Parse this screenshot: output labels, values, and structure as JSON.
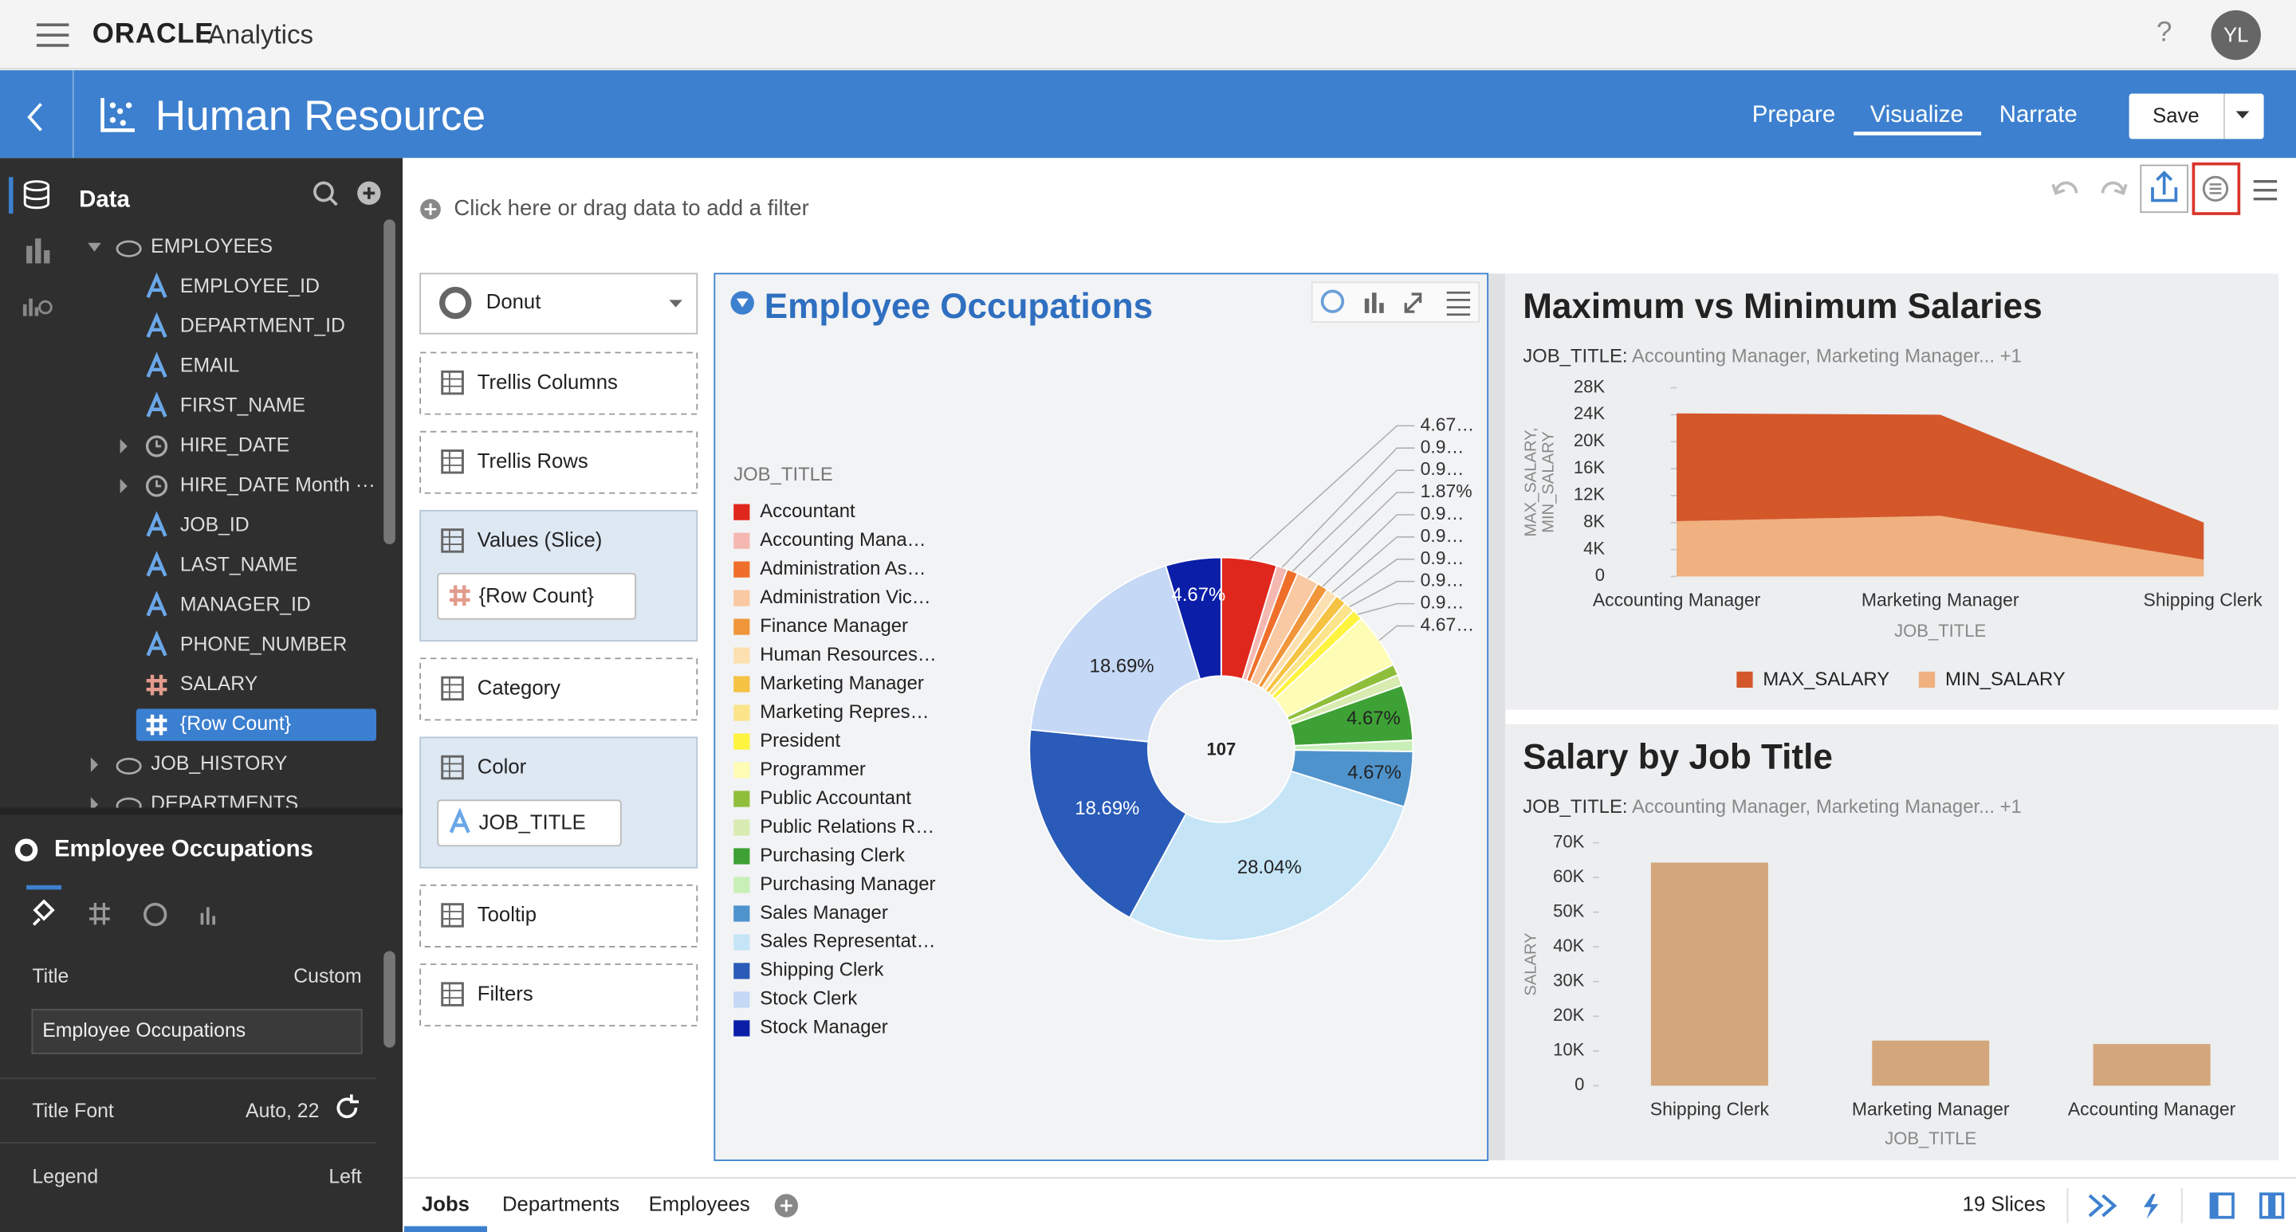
{
  "top_bar": {
    "brand": "ORACLE",
    "product": "Analytics",
    "help": "?",
    "user_initials": "YL"
  },
  "header": {
    "title": "Human Resource",
    "tabs": [
      "Prepare",
      "Visualize",
      "Narrate"
    ],
    "active_tab": 1,
    "save": "Save"
  },
  "data_panel": {
    "title": "Data",
    "tree": [
      {
        "label": "EMPLOYEES",
        "kind": "table",
        "expand": "open"
      },
      {
        "label": "EMPLOYEE_ID",
        "kind": "attribute"
      },
      {
        "label": "DEPARTMENT_ID",
        "kind": "attribute"
      },
      {
        "label": "EMAIL",
        "kind": "attribute"
      },
      {
        "label": "FIRST_NAME",
        "kind": "attribute"
      },
      {
        "label": "HIRE_DATE",
        "kind": "date",
        "expand": "closed"
      },
      {
        "label": "HIRE_DATE Month ···",
        "kind": "date",
        "expand": "closed"
      },
      {
        "label": "JOB_ID",
        "kind": "attribute"
      },
      {
        "label": "LAST_NAME",
        "kind": "attribute"
      },
      {
        "label": "MANAGER_ID",
        "kind": "attribute"
      },
      {
        "label": "PHONE_NUMBER",
        "kind": "attribute"
      },
      {
        "label": "SALARY",
        "kind": "measure"
      },
      {
        "label": "{Row Count}",
        "kind": "measure",
        "selected": true
      },
      {
        "label": "JOB_HISTORY",
        "kind": "table",
        "expand": "closed"
      },
      {
        "label": "DEPARTMENTS",
        "kind": "table",
        "expand": "closed"
      }
    ]
  },
  "properties": {
    "title": "Employee Occupations",
    "rows": [
      {
        "label": "Title",
        "value": "Custom"
      },
      {
        "label": "Title Font",
        "value": "Auto, 22"
      },
      {
        "label": "Legend",
        "value": "Left"
      }
    ],
    "title_input": "Employee Occupations"
  },
  "filter_bar": {
    "placeholder": "Click here or drag data to add a filter"
  },
  "grammar": {
    "chart_type": "Donut",
    "sections": [
      {
        "label": "Trellis Columns"
      },
      {
        "label": "Trellis Rows"
      },
      {
        "label": "Values (Slice)",
        "item": "{Row Count}",
        "item_kind": "measure"
      },
      {
        "label": "Category"
      },
      {
        "label": "Color",
        "item": "JOB_TITLE",
        "item_kind": "attribute"
      },
      {
        "label": "Tooltip"
      },
      {
        "label": "Filters"
      }
    ]
  },
  "chart_data": [
    {
      "type": "donut",
      "title": "Employee Occupations",
      "legend_title": "JOB_TITLE",
      "legend": "left",
      "categories": [
        "Accountant",
        "Accounting Mana…",
        "Administration As…",
        "Administration Vic…",
        "Finance Manager",
        "Human Resources…",
        "Marketing Manager",
        "Marketing Repres…",
        "President",
        "Programmer",
        "Public Accountant",
        "Public Relations R…",
        "Purchasing Clerk",
        "Purchasing Manager",
        "Sales Manager",
        "Sales Representat…",
        "Shipping Clerk",
        "Stock Clerk",
        "Stock Manager"
      ],
      "values": [
        4.67,
        0.93,
        0.93,
        1.87,
        0.93,
        0.93,
        0.93,
        0.93,
        0.93,
        4.67,
        0.93,
        0.93,
        4.67,
        0.93,
        4.67,
        28.04,
        18.69,
        18.69,
        4.67
      ],
      "value_labels": [
        "4.67…",
        "0.9…",
        "0.9…",
        "1.87%",
        "0.9…",
        "0.9…",
        "0.9…",
        "0.9…",
        "0.9…",
        "4.67…",
        null,
        null,
        "4.67%",
        null,
        "4.67%",
        "28.04%",
        "18.69%",
        "18.69%",
        "4.67%"
      ],
      "colors": [
        "#e0271d",
        "#f4b8b1",
        "#ef6f2a",
        "#f8c9a2",
        "#f0953a",
        "#fde0b0",
        "#f5c242",
        "#fbe48a",
        "#fef33e",
        "#fefcb5",
        "#8fbe3a",
        "#d8ebb0",
        "#3ea135",
        "#c8efb7",
        "#4f93cc",
        "#c5e5f7",
        "#2a5bb8",
        "#c5d8f5",
        "#0b1ea8"
      ],
      "total": 107
    },
    {
      "type": "area",
      "title": "Maximum vs Minimum Salaries",
      "filter_label": "JOB_TITLE:",
      "filter_values": "Accounting Manager, Marketing Manager... +1",
      "categories": [
        "Accounting Manager",
        "Marketing Manager",
        "Shipping Clerk"
      ],
      "series": [
        {
          "name": "MAX_SALARY",
          "color": "#d4572a",
          "values": [
            16000,
            15000,
            5500
          ]
        },
        {
          "name": "MIN_SALARY",
          "color": "#f0b07f",
          "values": [
            8200,
            9000,
            2500
          ]
        }
      ],
      "stacked": true,
      "legend": "bottom",
      "ylim": [
        0,
        28000
      ],
      "yticks": [
        0,
        {
          "value": 4000,
          "label": "4K"
        },
        {
          "value": 8000,
          "label": "8K"
        },
        {
          "value": 12000,
          "label": "12K"
        },
        {
          "value": 16000,
          "label": "16K"
        },
        {
          "value": 20000,
          "label": "20K"
        },
        {
          "value": 24000,
          "label": "24K"
        },
        {
          "value": 28000,
          "label": "28K"
        }
      ],
      "y_label_lines": [
        "MAX_SALARY,",
        "MIN_SALARY"
      ],
      "x_label": "JOB_TITLE"
    },
    {
      "type": "bar",
      "title": "Salary by Job Title",
      "filter_label": "JOB_TITLE:",
      "filter_values": "Accounting Manager, Marketing Manager... +1",
      "categories": [
        "Shipping Clerk",
        "Marketing Manager",
        "Accounting Manager"
      ],
      "values": [
        64300,
        13000,
        12008
      ],
      "color": "#d3a77b",
      "ylim": [
        0,
        70000
      ],
      "yticks": [
        0,
        {
          "value": 10000,
          "label": "10K"
        },
        {
          "value": 20000,
          "label": "20K"
        },
        {
          "value": 30000,
          "label": "30K"
        },
        {
          "value": 40000,
          "label": "40K"
        },
        {
          "value": 50000,
          "label": "50K"
        },
        {
          "value": 60000,
          "label": "60K"
        },
        {
          "value": 70000,
          "label": "70K"
        }
      ],
      "y_label": "SALARY",
      "x_label": "JOB_TITLE"
    }
  ],
  "tabs": {
    "items": [
      "Jobs",
      "Departments",
      "Employees"
    ],
    "active": 0
  },
  "status": "19 Slices"
}
